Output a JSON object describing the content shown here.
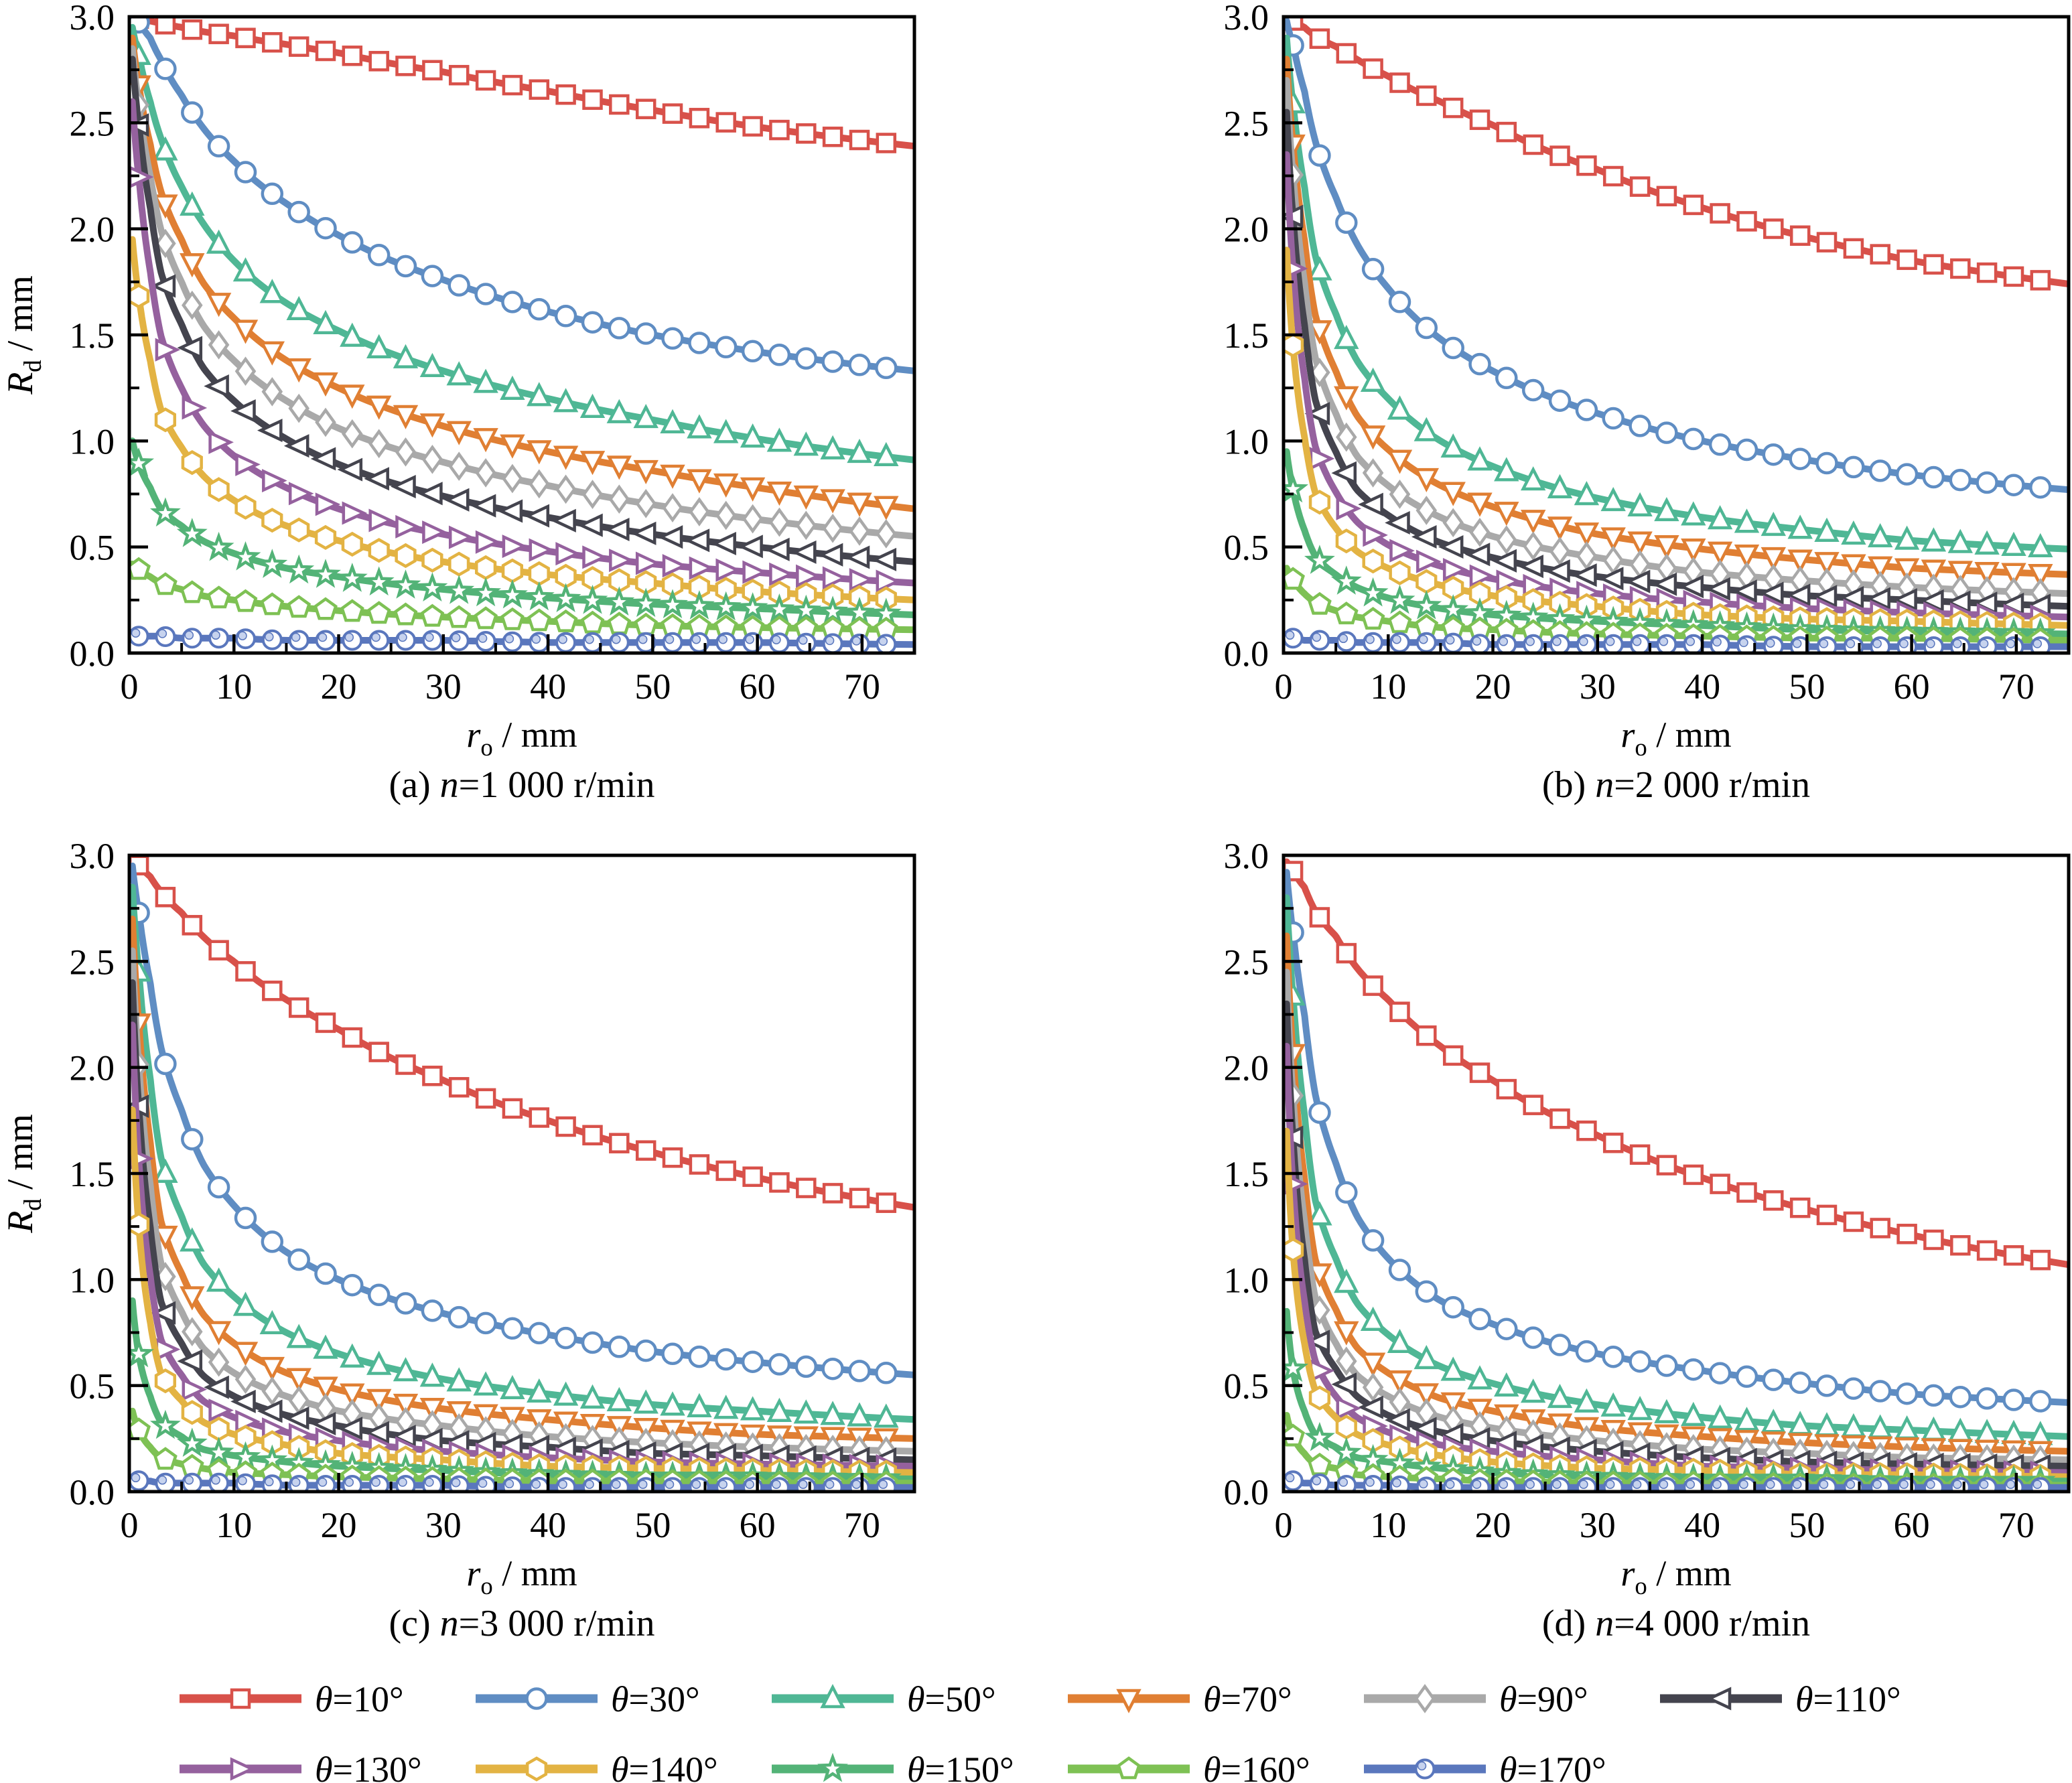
{
  "figure": {
    "background": "#ffffff",
    "axes": {
      "xlabel": {
        "var": "r",
        "sub": "o",
        "rest": " / mm"
      },
      "ylabel": {
        "var": "R",
        "sub": "d",
        "rest": " / mm"
      },
      "xlim": [
        0,
        75
      ],
      "ylim": [
        0,
        3
      ],
      "x_major_ticks": [
        0,
        10,
        20,
        30,
        40,
        50,
        60,
        70
      ],
      "x_minor_ticks": [
        5,
        15,
        25,
        35,
        45,
        55,
        65,
        75
      ],
      "y_major_ticks": [
        0,
        0.5,
        1,
        1.5,
        2,
        2.5,
        3
      ],
      "y_minor_ticks": [
        0.25,
        0.75,
        1.25,
        1.75,
        2.25,
        2.75
      ],
      "y_tick_labels": [
        "0.0",
        "0.5",
        "1.0",
        "1.5",
        "2.0",
        "2.5",
        "3.0"
      ]
    },
    "series_styles": [
      {
        "name": "θ=10°",
        "theta": 10,
        "color": "#d8514a",
        "marker": "square"
      },
      {
        "name": "θ=30°",
        "theta": 30,
        "color": "#5f8dc3",
        "marker": "circle"
      },
      {
        "name": "θ=50°",
        "theta": 50,
        "color": "#4fb795",
        "marker": "triangle-up"
      },
      {
        "name": "θ=70°",
        "theta": 70,
        "color": "#e07f33",
        "marker": "triangle-down"
      },
      {
        "name": "θ=90°",
        "theta": 90,
        "color": "#a9a9a9",
        "marker": "diamond"
      },
      {
        "name": "θ=110°",
        "theta": 110,
        "color": "#44444e",
        "marker": "triangle-left"
      },
      {
        "name": "θ=130°",
        "theta": 130,
        "color": "#95619e",
        "marker": "triangle-right"
      },
      {
        "name": "θ=140°",
        "theta": 140,
        "color": "#e3b343",
        "marker": "hexagon"
      },
      {
        "name": "θ=150°",
        "theta": 150,
        "color": "#53b377",
        "marker": "star"
      },
      {
        "name": "θ=160°",
        "theta": 160,
        "color": "#7ec154",
        "marker": "pentagon"
      },
      {
        "name": "θ=170°",
        "theta": 170,
        "color": "#5a77bd",
        "marker": "circle-dot"
      }
    ],
    "legend": {
      "rows": [
        [
          0,
          1,
          2,
          3,
          4,
          5
        ],
        [
          6,
          7,
          8,
          9,
          10
        ]
      ]
    }
  },
  "chart_data": [
    {
      "id": "a",
      "type": "line",
      "caption": {
        "prefix": "(a) ",
        "var": "n",
        "rest": "=1 000 r/min"
      },
      "x": [
        0.3,
        1,
        2,
        3,
        5,
        7,
        10,
        15,
        20,
        30,
        40,
        50,
        60,
        75
      ],
      "series": [
        {
          "name": "θ=10°",
          "values": [
            3.0,
            2.99,
            2.98,
            2.97,
            2.95,
            2.93,
            2.91,
            2.87,
            2.83,
            2.74,
            2.65,
            2.56,
            2.48,
            2.39
          ]
        },
        {
          "name": "θ=30°",
          "values": [
            3.0,
            2.97,
            2.9,
            2.8,
            2.63,
            2.48,
            2.32,
            2.12,
            1.97,
            1.76,
            1.61,
            1.5,
            1.42,
            1.33
          ]
        },
        {
          "name": "θ=50°",
          "values": [
            2.95,
            2.8,
            2.6,
            2.43,
            2.2,
            2.03,
            1.85,
            1.65,
            1.52,
            1.33,
            1.2,
            1.1,
            1.01,
            0.91
          ]
        },
        {
          "name": "θ=70°",
          "values": [
            2.9,
            2.65,
            2.4,
            2.18,
            1.95,
            1.75,
            1.58,
            1.38,
            1.25,
            1.07,
            0.95,
            0.86,
            0.78,
            0.68
          ]
        },
        {
          "name": "θ=90°",
          "values": [
            2.85,
            2.55,
            2.25,
            2.0,
            1.75,
            1.55,
            1.38,
            1.19,
            1.06,
            0.9,
            0.79,
            0.7,
            0.63,
            0.55
          ]
        },
        {
          "name": "θ=110°",
          "values": [
            2.8,
            2.45,
            2.1,
            1.8,
            1.55,
            1.35,
            1.19,
            1.01,
            0.89,
            0.74,
            0.64,
            0.56,
            0.5,
            0.43
          ]
        },
        {
          "name": "θ=130°",
          "values": [
            2.6,
            2.2,
            1.8,
            1.5,
            1.25,
            1.08,
            0.93,
            0.78,
            0.68,
            0.56,
            0.48,
            0.42,
            0.38,
            0.33
          ]
        },
        {
          "name": "θ=140°",
          "values": [
            1.95,
            1.65,
            1.38,
            1.15,
            0.97,
            0.84,
            0.72,
            0.6,
            0.53,
            0.43,
            0.37,
            0.33,
            0.29,
            0.25
          ]
        },
        {
          "name": "θ=150°",
          "values": [
            1.0,
            0.88,
            0.78,
            0.68,
            0.6,
            0.53,
            0.47,
            0.4,
            0.36,
            0.3,
            0.26,
            0.23,
            0.21,
            0.18
          ]
        },
        {
          "name": "θ=160°",
          "values": [
            0.42,
            0.39,
            0.36,
            0.33,
            0.3,
            0.27,
            0.25,
            0.22,
            0.2,
            0.17,
            0.15,
            0.13,
            0.12,
            0.11
          ]
        },
        {
          "name": "θ=170°",
          "values": [
            0.08,
            0.08,
            0.08,
            0.08,
            0.07,
            0.07,
            0.07,
            0.06,
            0.06,
            0.06,
            0.05,
            0.05,
            0.05,
            0.04
          ]
        }
      ]
    },
    {
      "id": "b",
      "type": "line",
      "caption": {
        "prefix": "(b) ",
        "var": "n",
        "rest": "=2 000 r/min"
      },
      "x": [
        0.3,
        1,
        2,
        3,
        5,
        7,
        10,
        15,
        20,
        30,
        40,
        50,
        60,
        75
      ],
      "series": [
        {
          "name": "θ=10°",
          "values": [
            3.0,
            2.98,
            2.95,
            2.91,
            2.86,
            2.8,
            2.72,
            2.6,
            2.49,
            2.28,
            2.1,
            1.96,
            1.85,
            1.74
          ]
        },
        {
          "name": "θ=30°",
          "values": [
            2.98,
            2.85,
            2.65,
            2.42,
            2.15,
            1.93,
            1.72,
            1.48,
            1.33,
            1.13,
            1.0,
            0.91,
            0.84,
            0.77
          ]
        },
        {
          "name": "θ=50°",
          "values": [
            2.9,
            2.55,
            2.2,
            1.88,
            1.6,
            1.38,
            1.2,
            1.0,
            0.88,
            0.73,
            0.64,
            0.58,
            0.53,
            0.49
          ]
        },
        {
          "name": "θ=70°",
          "values": [
            2.8,
            2.35,
            1.95,
            1.6,
            1.33,
            1.12,
            0.96,
            0.79,
            0.69,
            0.56,
            0.49,
            0.44,
            0.4,
            0.37
          ]
        },
        {
          "name": "θ=90°",
          "values": [
            2.7,
            2.2,
            1.75,
            1.4,
            1.13,
            0.93,
            0.79,
            0.64,
            0.55,
            0.45,
            0.38,
            0.34,
            0.31,
            0.28
          ]
        },
        {
          "name": "θ=110°",
          "values": [
            2.55,
            2.0,
            1.55,
            1.2,
            0.95,
            0.77,
            0.65,
            0.52,
            0.45,
            0.36,
            0.31,
            0.27,
            0.25,
            0.22
          ]
        },
        {
          "name": "θ=130°",
          "values": [
            2.35,
            1.75,
            1.3,
            0.98,
            0.76,
            0.62,
            0.51,
            0.41,
            0.35,
            0.28,
            0.24,
            0.21,
            0.19,
            0.17
          ]
        },
        {
          "name": "θ=140°",
          "values": [
            1.9,
            1.4,
            1.02,
            0.76,
            0.59,
            0.48,
            0.4,
            0.32,
            0.27,
            0.22,
            0.18,
            0.16,
            0.15,
            0.13
          ]
        },
        {
          "name": "θ=150°",
          "values": [
            0.95,
            0.75,
            0.58,
            0.46,
            0.37,
            0.31,
            0.26,
            0.21,
            0.18,
            0.15,
            0.13,
            0.11,
            0.1,
            0.09
          ]
        },
        {
          "name": "θ=160°",
          "values": [
            0.4,
            0.34,
            0.28,
            0.24,
            0.2,
            0.17,
            0.15,
            0.12,
            0.11,
            0.09,
            0.08,
            0.07,
            0.07,
            0.06
          ]
        },
        {
          "name": "θ=170°",
          "values": [
            0.07,
            0.07,
            0.06,
            0.06,
            0.06,
            0.05,
            0.05,
            0.05,
            0.04,
            0.04,
            0.04,
            0.03,
            0.03,
            0.03
          ]
        }
      ]
    },
    {
      "id": "c",
      "type": "line",
      "caption": {
        "prefix": "(c) ",
        "var": "n",
        "rest": "=3 000 r/min"
      },
      "x": [
        0.3,
        1,
        2,
        3,
        5,
        7,
        10,
        15,
        20,
        30,
        40,
        50,
        60,
        75
      ],
      "series": [
        {
          "name": "θ=10°",
          "values": [
            2.98,
            2.95,
            2.9,
            2.83,
            2.73,
            2.62,
            2.5,
            2.32,
            2.18,
            1.94,
            1.75,
            1.6,
            1.48,
            1.34
          ]
        },
        {
          "name": "θ=30°",
          "values": [
            2.95,
            2.7,
            2.4,
            2.1,
            1.8,
            1.55,
            1.35,
            1.13,
            1.0,
            0.84,
            0.74,
            0.66,
            0.61,
            0.55
          ]
        },
        {
          "name": "θ=50°",
          "values": [
            2.85,
            2.4,
            1.95,
            1.58,
            1.3,
            1.08,
            0.92,
            0.75,
            0.65,
            0.53,
            0.46,
            0.41,
            0.38,
            0.34
          ]
        },
        {
          "name": "θ=70°",
          "values": [
            2.7,
            2.15,
            1.65,
            1.28,
            1.03,
            0.84,
            0.7,
            0.56,
            0.48,
            0.39,
            0.34,
            0.3,
            0.27,
            0.25
          ]
        },
        {
          "name": "θ=90°",
          "values": [
            2.55,
            1.95,
            1.45,
            1.08,
            0.85,
            0.68,
            0.56,
            0.45,
            0.38,
            0.31,
            0.26,
            0.23,
            0.21,
            0.19
          ]
        },
        {
          "name": "θ=110°",
          "values": [
            2.4,
            1.75,
            1.25,
            0.9,
            0.7,
            0.55,
            0.45,
            0.36,
            0.31,
            0.24,
            0.21,
            0.18,
            0.17,
            0.15
          ]
        },
        {
          "name": "θ=130°",
          "values": [
            2.2,
            1.5,
            1.02,
            0.72,
            0.55,
            0.43,
            0.35,
            0.28,
            0.24,
            0.19,
            0.16,
            0.14,
            0.13,
            0.12
          ]
        },
        {
          "name": "θ=140°",
          "values": [
            1.8,
            1.2,
            0.8,
            0.56,
            0.43,
            0.33,
            0.27,
            0.22,
            0.18,
            0.15,
            0.12,
            0.11,
            0.1,
            0.09
          ]
        },
        {
          "name": "θ=150°",
          "values": [
            0.9,
            0.62,
            0.45,
            0.33,
            0.26,
            0.2,
            0.17,
            0.14,
            0.12,
            0.1,
            0.08,
            0.07,
            0.07,
            0.06
          ]
        },
        {
          "name": "θ=160°",
          "values": [
            0.38,
            0.28,
            0.21,
            0.16,
            0.13,
            0.11,
            0.09,
            0.08,
            0.07,
            0.06,
            0.05,
            0.05,
            0.04,
            0.04
          ]
        },
        {
          "name": "θ=170°",
          "values": [
            0.06,
            0.05,
            0.05,
            0.04,
            0.04,
            0.04,
            0.04,
            0.03,
            0.03,
            0.03,
            0.02,
            0.02,
            0.02,
            0.02
          ]
        }
      ]
    },
    {
      "id": "d",
      "type": "line",
      "caption": {
        "prefix": "(d) ",
        "var": "n",
        "rest": "=4 000 r/min"
      },
      "x": [
        0.3,
        1,
        2,
        3,
        5,
        7,
        10,
        15,
        20,
        30,
        40,
        50,
        60,
        75
      ],
      "series": [
        {
          "name": "θ=10°",
          "values": [
            2.97,
            2.92,
            2.85,
            2.74,
            2.62,
            2.47,
            2.32,
            2.1,
            1.94,
            1.68,
            1.48,
            1.33,
            1.21,
            1.07
          ]
        },
        {
          "name": "θ=30°",
          "values": [
            2.92,
            2.6,
            2.25,
            1.88,
            1.55,
            1.3,
            1.1,
            0.9,
            0.79,
            0.65,
            0.57,
            0.51,
            0.46,
            0.42
          ]
        },
        {
          "name": "θ=50°",
          "values": [
            2.8,
            2.28,
            1.78,
            1.38,
            1.1,
            0.89,
            0.74,
            0.59,
            0.51,
            0.41,
            0.35,
            0.31,
            0.29,
            0.26
          ]
        },
        {
          "name": "θ=70°",
          "values": [
            2.62,
            2.0,
            1.48,
            1.1,
            0.86,
            0.68,
            0.56,
            0.44,
            0.38,
            0.3,
            0.26,
            0.23,
            0.21,
            0.19
          ]
        },
        {
          "name": "θ=90°",
          "values": [
            2.45,
            1.8,
            1.28,
            0.92,
            0.7,
            0.55,
            0.45,
            0.35,
            0.3,
            0.24,
            0.2,
            0.18,
            0.16,
            0.15
          ]
        },
        {
          "name": "θ=110°",
          "values": [
            2.3,
            1.6,
            1.1,
            0.76,
            0.58,
            0.45,
            0.36,
            0.28,
            0.24,
            0.19,
            0.16,
            0.14,
            0.13,
            0.12
          ]
        },
        {
          "name": "θ=130°",
          "values": [
            2.1,
            1.38,
            0.9,
            0.62,
            0.45,
            0.35,
            0.28,
            0.22,
            0.19,
            0.15,
            0.12,
            0.11,
            0.1,
            0.09
          ]
        },
        {
          "name": "θ=140°",
          "values": [
            1.7,
            1.08,
            0.7,
            0.48,
            0.35,
            0.27,
            0.22,
            0.17,
            0.14,
            0.11,
            0.1,
            0.08,
            0.08,
            0.07
          ]
        },
        {
          "name": "θ=150°",
          "values": [
            0.85,
            0.55,
            0.38,
            0.27,
            0.21,
            0.16,
            0.14,
            0.11,
            0.09,
            0.07,
            0.06,
            0.06,
            0.05,
            0.05
          ]
        },
        {
          "name": "θ=160°",
          "values": [
            0.36,
            0.25,
            0.18,
            0.13,
            0.11,
            0.08,
            0.07,
            0.06,
            0.05,
            0.04,
            0.04,
            0.03,
            0.03,
            0.03
          ]
        },
        {
          "name": "θ=170°",
          "values": [
            0.06,
            0.05,
            0.04,
            0.04,
            0.03,
            0.03,
            0.03,
            0.02,
            0.02,
            0.02,
            0.02,
            0.02,
            0.02,
            0.02
          ]
        }
      ]
    }
  ]
}
